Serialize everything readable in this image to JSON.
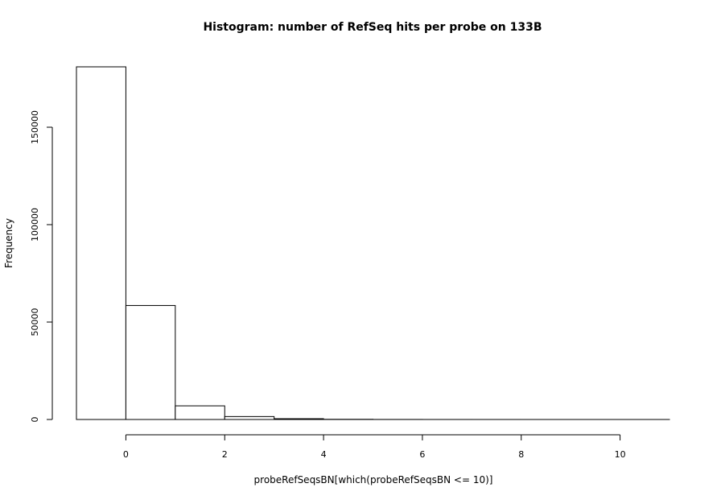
{
  "chart_data": {
    "type": "bar",
    "title": "Histogram: number of RefSeq hits per probe on 133B",
    "xlabel": "probeRefSeqsBN[which(probeRefSeqsBN <= 10)]",
    "ylabel": "Frequency",
    "bins": [
      {
        "from": -1,
        "to": 0,
        "value": 181000
      },
      {
        "from": 0,
        "to": 1,
        "value": 58500
      },
      {
        "from": 1,
        "to": 2,
        "value": 7000
      },
      {
        "from": 2,
        "to": 3,
        "value": 1500
      },
      {
        "from": 3,
        "to": 4,
        "value": 400
      },
      {
        "from": 4,
        "to": 5,
        "value": 100
      },
      {
        "from": 5,
        "to": 6,
        "value": 30
      },
      {
        "from": 6,
        "to": 7,
        "value": 10
      },
      {
        "from": 7,
        "to": 8,
        "value": 5
      },
      {
        "from": 8,
        "to": 9,
        "value": 2
      },
      {
        "from": 9,
        "to": 10,
        "value": 1
      },
      {
        "from": 10,
        "to": 11,
        "value": 1
      }
    ],
    "xlim": [
      -1,
      11
    ],
    "ylim": [
      0,
      181000
    ],
    "x_ticks": [
      0,
      2,
      4,
      6,
      8,
      10
    ],
    "y_ticks": [
      0,
      50000,
      100000,
      150000
    ],
    "grid": false
  }
}
